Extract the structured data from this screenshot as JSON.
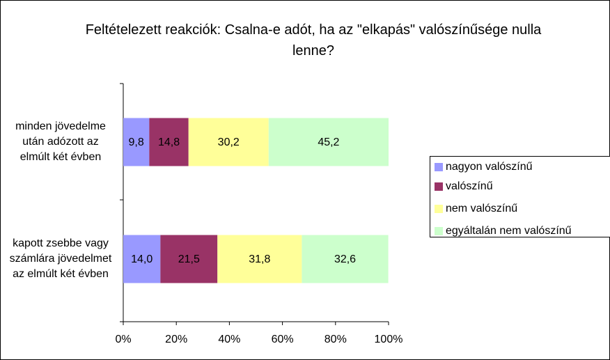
{
  "chart_data": {
    "type": "stacked-bar-horizontal",
    "title": "Feltételezett reakciók: Csalna-e adót, ha az \"elkapás\" valószínűsége nulla lenne?",
    "categories": [
      "minden jövedelme után adózott az elmúlt két évben",
      "kapott zsebbe vagy számlára jövedelmet az elmúlt két évben"
    ],
    "series": [
      {
        "name": "nagyon valószínű",
        "color": "#9999ff",
        "values": [
          9.8,
          14.0
        ],
        "value_labels": [
          "9,8",
          "14,0"
        ]
      },
      {
        "name": "valószínű",
        "color": "#993366",
        "values": [
          14.8,
          21.5
        ],
        "value_labels": [
          "14,8",
          "21,5"
        ]
      },
      {
        "name": "nem valószínű",
        "color": "#ffff99",
        "values": [
          30.2,
          31.8
        ],
        "value_labels": [
          "30,2",
          "31,8"
        ]
      },
      {
        "name": "egyáltalán nem valószínű",
        "color": "#ccffcc",
        "values": [
          45.2,
          32.6
        ],
        "value_labels": [
          "45,2",
          "32,6"
        ]
      }
    ],
    "xlim": [
      0,
      100
    ],
    "xticks": [
      {
        "value": 0,
        "label": "0%"
      },
      {
        "value": 20,
        "label": "20%"
      },
      {
        "value": 40,
        "label": "40%"
      },
      {
        "value": 60,
        "label": "60%"
      },
      {
        "value": 80,
        "label": "80%"
      },
      {
        "value": 100,
        "label": "100%"
      }
    ],
    "legend": "right"
  }
}
